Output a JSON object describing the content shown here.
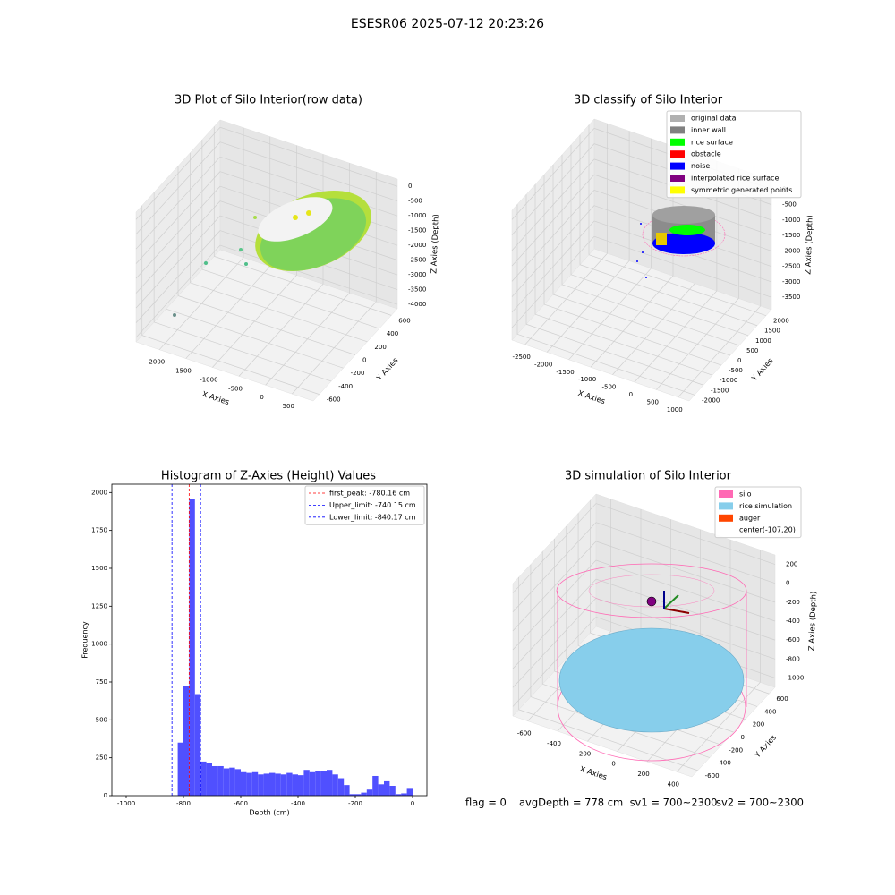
{
  "suptitle": "ESESR06 2025-07-12 20:23:26",
  "chart_data": [
    {
      "type": "scatter3d",
      "title": "3D Plot of Silo Interior(row data)",
      "xlabel": "X Axies",
      "ylabel": "Y Axies",
      "zlabel": "Z Axies (Depth)",
      "xlim": [
        -2440,
        900
      ],
      "ylim": [
        -700,
        700
      ],
      "zlim": [
        -4150,
        250
      ],
      "xticks": [
        -2000,
        -1500,
        -1000,
        -500,
        0,
        500
      ],
      "yticks": [
        -600,
        -400,
        -200,
        0,
        200,
        400,
        600
      ],
      "zticks": [
        -4000,
        -3500,
        -3000,
        -2500,
        -2000,
        -1500,
        -1000,
        -500,
        0
      ]
    },
    {
      "type": "scatter3d",
      "title": "3D classify of Silo Interior",
      "xlabel": "X Axies",
      "ylabel": "Y Axies",
      "zlabel": "Z Axies (Depth)",
      "xlim": [
        -2800,
        1250
      ],
      "ylim": [
        -2300,
        2300
      ],
      "zlim": [
        -3900,
        300
      ],
      "xticks": [
        -2500,
        -2000,
        -1500,
        -1000,
        -500,
        0,
        500,
        1000
      ],
      "yticks": [
        -2000,
        -1500,
        -1000,
        -500,
        0,
        500,
        1000,
        1500,
        2000
      ],
      "zticks": [
        -3500,
        -3000,
        -2500,
        -2000,
        -1500,
        -1000,
        -500,
        0
      ],
      "series": [
        {
          "name": "original data",
          "color": "#b0b0b0"
        },
        {
          "name": "inner wall",
          "color": "#808080"
        },
        {
          "name": "rice surface",
          "color": "#00ff00"
        },
        {
          "name": "obstacle",
          "color": "#ff0000"
        },
        {
          "name": "noise",
          "color": "#0000ff"
        },
        {
          "name": "interpolated rice surface",
          "color": "#800080"
        },
        {
          "name": "symmetric generated points",
          "color": "#ffff00"
        }
      ]
    },
    {
      "type": "histogram",
      "title": "Histogram of Z-Axies (Height) Values",
      "xlabel": "Depth (cm)",
      "ylabel": "Frequency",
      "color": "#5050ff",
      "bins": [
        -840,
        -820,
        -800,
        -780,
        -760,
        -740,
        -720,
        -700,
        -680,
        -660,
        -640,
        -620,
        -600,
        -580,
        -560,
        -540,
        -520,
        -500,
        -480,
        -460,
        -440,
        -420,
        -400,
        -380,
        -360,
        -340,
        -320,
        -300,
        -280,
        -260,
        -240,
        -220,
        -200,
        -180,
        -160,
        -140,
        -120,
        -100,
        -80,
        -60,
        -40,
        -20,
        0
      ],
      "values": [
        3,
        350,
        725,
        1960,
        670,
        225,
        215,
        195,
        195,
        180,
        185,
        175,
        155,
        150,
        155,
        140,
        145,
        150,
        145,
        140,
        150,
        140,
        135,
        170,
        155,
        165,
        165,
        170,
        140,
        115,
        70,
        10,
        10,
        20,
        40,
        130,
        75,
        95,
        65,
        10,
        15,
        45
      ],
      "xlim": [
        -1050,
        50
      ],
      "ylim": [
        0,
        2055
      ],
      "xticks": [
        -1000,
        -800,
        -600,
        -400,
        -200,
        0
      ],
      "yticks": [
        0,
        250,
        500,
        750,
        1000,
        1250,
        1500,
        1750,
        2000
      ],
      "reference_lines": [
        {
          "value": -780.16,
          "label": "first_peak: -780.16 cm",
          "color": "#ff0000"
        },
        {
          "value": -740.15,
          "label": "Upper_limit: -740.15 cm",
          "color": "#0000ff"
        },
        {
          "value": -840.17,
          "label": "Lower_limit: -840.17 cm",
          "color": "#0000ff"
        }
      ]
    },
    {
      "type": "surface3d",
      "title": "3D simulation of Silo Interior",
      "xlabel": "X Axies",
      "ylabel": "Y Axies",
      "zlabel": "Z Axies (Depth)",
      "xlim": [
        -700,
        500
      ],
      "ylim": [
        -700,
        700
      ],
      "zlim": [
        -1100,
        300
      ],
      "xticks": [
        -600,
        -400,
        -200,
        0,
        200,
        400
      ],
      "yticks": [
        -600,
        -400,
        -200,
        0,
        200,
        400,
        600
      ],
      "zticks": [
        -1000,
        -800,
        -600,
        -400,
        -200,
        0,
        200
      ],
      "series": [
        {
          "name": "silo",
          "color": "#ff69b4"
        },
        {
          "name": "rice simulation",
          "color": "#87ceeb"
        },
        {
          "name": "auger",
          "color": "#ff4500"
        },
        {
          "name": "center(-107,20)"
        }
      ],
      "annotations": [
        "flag = 0",
        "avgDepth = 778 cm  sv1 = 700~2300",
        "sv2 = 700~2300"
      ]
    }
  ]
}
